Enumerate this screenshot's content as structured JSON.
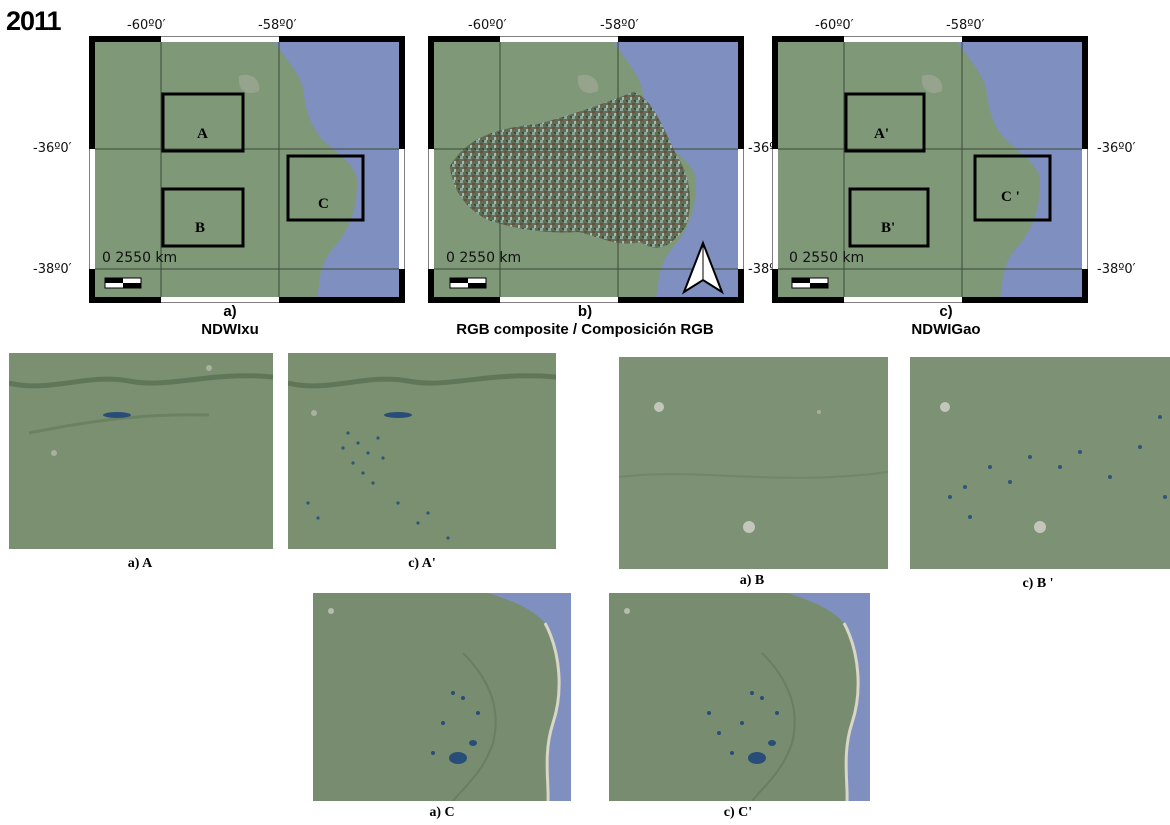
{
  "year": "2011",
  "maps": [
    {
      "id": "a",
      "ticks": {
        "top": [
          "-60º0′",
          "-58º0′"
        ],
        "left": [
          "-36º0′",
          "-38º0′"
        ],
        "right": []
      },
      "scale": "0 2550 km",
      "boxes": [
        "A",
        "B",
        "C"
      ],
      "letter": "a)",
      "title": "NDWIxu"
    },
    {
      "id": "b",
      "ticks": {
        "top": [
          "-60º0′",
          "-58º0′"
        ],
        "left": [],
        "right": []
      },
      "scale": "0 2550 km",
      "boxes": [],
      "letter": "b)",
      "title": "RGB composite / Composición RGB",
      "north_arrow": true
    },
    {
      "id": "c",
      "ticks": {
        "top": [
          "-60º0′",
          "-58º0′"
        ],
        "left": [
          "-36º",
          "-38º"
        ],
        "right": [
          "-36º0′",
          "-38º0′"
        ]
      },
      "scale": "0 2550 km",
      "boxes": [
        "A'",
        "C '",
        "B'"
      ],
      "letter": "c)",
      "title": "NDWIGao"
    }
  ],
  "tiles": [
    "a) A",
    "c) A'",
    "a) B",
    "c) B '",
    "a) C",
    "c) C'"
  ],
  "colors": {
    "land": "#7f9878",
    "sea": "#7f8fc0",
    "frame": "#000000",
    "water_spots": "#284d78"
  }
}
